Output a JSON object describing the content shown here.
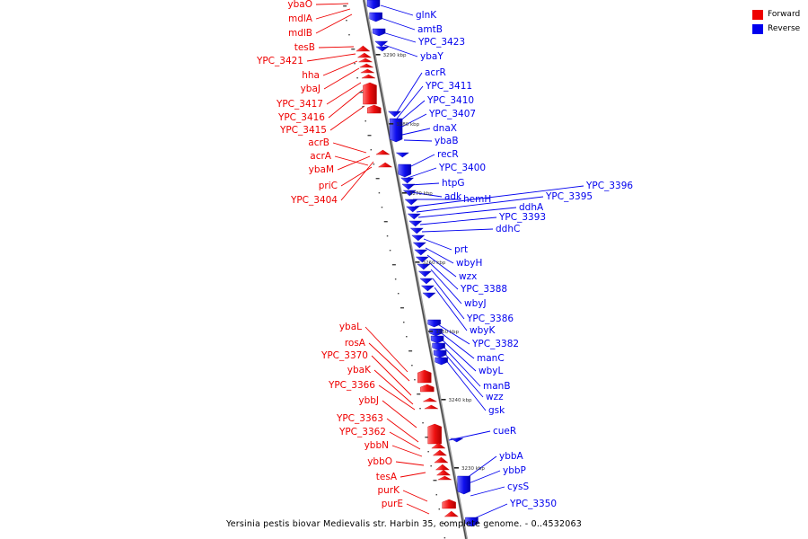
{
  "legend": {
    "forward_label": "Forward",
    "reverse_label": "Reverse",
    "forward_color": "#ee0000",
    "reverse_color": "#0000ee"
  },
  "caption": "Yersinia pestis biovar Medievalis str. Harbin 35, complete genome. - 0..4532063",
  "ticks": [
    "3290 kbp",
    "3280 kbp",
    "3270 kbp",
    "3260 kbp",
    "3250 kbp",
    "3240 kbp",
    "3230 kbp"
  ],
  "forward_genes": [
    "ybaO",
    "mdlA",
    "mdlB",
    "tesB",
    "YPC_3421",
    "hha",
    "ybaJ",
    "YPC_3417",
    "YPC_3416",
    "YPC_3415",
    "acrB",
    "acrA",
    "ybaM",
    "priC",
    "YPC_3404",
    "ybaL",
    "rosA",
    "YPC_3370",
    "ybaK",
    "YPC_3366",
    "ybbJ",
    "YPC_3363",
    "YPC_3362",
    "ybbN",
    "ybbO",
    "tesA",
    "purK",
    "purE"
  ],
  "reverse_genes": [
    "glnK",
    "amtB",
    "YPC_3423",
    "ybaY",
    "acrR",
    "YPC_3411",
    "YPC_3410",
    "YPC_3407",
    "dnaX",
    "ybaB",
    "recR",
    "YPC_3400",
    "htpG",
    "adk",
    "hemH",
    "YPC_3396",
    "YPC_3395",
    "ddhA",
    "YPC_3393",
    "ddhC",
    "prt",
    "wbyH",
    "wzx",
    "YPC_3388",
    "wbyJ",
    "YPC_3386",
    "wbyK",
    "YPC_3382",
    "manC",
    "wbyL",
    "manB",
    "wzz",
    "gsk",
    "cueR",
    "ybbA",
    "ybbP",
    "cysS",
    "YPC_3350"
  ]
}
